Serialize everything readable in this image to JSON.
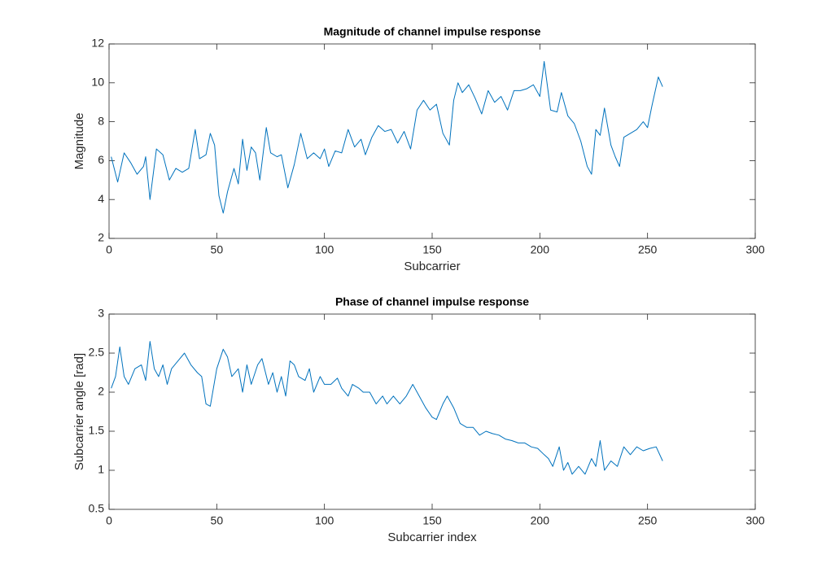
{
  "chart_data": [
    {
      "type": "line",
      "title": "Magnitude of channel impulse response",
      "xlabel": "Subcarrier",
      "ylabel": "Magnitude",
      "color": "#0072bd",
      "x": [
        1,
        4,
        7,
        10,
        13,
        16,
        17,
        19,
        22,
        25,
        28,
        31,
        34,
        37,
        40,
        42,
        45,
        47,
        49,
        51,
        53,
        55,
        58,
        60,
        62,
        64,
        66,
        68,
        70,
        73,
        75,
        78,
        80,
        83,
        86,
        89,
        92,
        95,
        98,
        100,
        102,
        105,
        108,
        111,
        114,
        117,
        119,
        122,
        125,
        128,
        131,
        134,
        137,
        140,
        143,
        146,
        149,
        152,
        155,
        158,
        160,
        162,
        164,
        167,
        170,
        173,
        176,
        179,
        182,
        185,
        188,
        191,
        194,
        197,
        200,
        202,
        205,
        208,
        210,
        213,
        216,
        219,
        222,
        224,
        226,
        228,
        230,
        233,
        235,
        237,
        239,
        242,
        245,
        248,
        250,
        252,
        255,
        257
      ],
      "values": [
        6.2,
        4.9,
        6.4,
        5.9,
        5.3,
        5.7,
        6.2,
        4.0,
        6.6,
        6.3,
        5.0,
        5.6,
        5.4,
        5.6,
        7.6,
        6.1,
        6.3,
        7.4,
        6.8,
        4.2,
        3.3,
        4.4,
        5.6,
        4.8,
        7.1,
        5.5,
        6.7,
        6.4,
        5.0,
        7.7,
        6.4,
        6.2,
        6.3,
        4.6,
        5.8,
        7.4,
        6.1,
        6.4,
        6.1,
        6.6,
        5.7,
        6.5,
        6.4,
        7.6,
        6.7,
        7.1,
        6.3,
        7.2,
        7.8,
        7.5,
        7.6,
        6.9,
        7.5,
        6.6,
        8.6,
        9.1,
        8.6,
        8.9,
        7.4,
        6.8,
        9.1,
        10.0,
        9.5,
        9.9,
        9.2,
        8.4,
        9.6,
        9.0,
        9.3,
        8.6,
        9.6,
        9.6,
        9.7,
        9.9,
        9.3,
        11.1,
        8.6,
        8.5,
        9.5,
        8.3,
        7.9,
        7.0,
        5.7,
        5.3,
        7.6,
        7.3,
        8.7,
        6.8,
        6.2,
        5.7,
        7.2,
        7.4,
        7.6,
        8.0,
        7.7,
        8.8,
        10.3,
        9.8
      ],
      "xlim": [
        0,
        300
      ],
      "xticks": [
        0,
        50,
        100,
        150,
        200,
        250,
        300
      ],
      "ylim": [
        2,
        12
      ],
      "yticks": [
        2,
        4,
        6,
        8,
        10,
        12
      ]
    },
    {
      "type": "line",
      "title": "Phase of channel impulse response",
      "xlabel": "Subcarrier index",
      "ylabel": "Subcarrier angle [rad]",
      "color": "#0072bd",
      "x": [
        1,
        3,
        5,
        7,
        9,
        12,
        15,
        17,
        19,
        21,
        23,
        25,
        27,
        29,
        32,
        35,
        38,
        41,
        43,
        45,
        47,
        50,
        53,
        55,
        57,
        60,
        62,
        64,
        66,
        69,
        71,
        74,
        76,
        78,
        80,
        82,
        84,
        86,
        88,
        91,
        93,
        95,
        98,
        100,
        103,
        106,
        108,
        111,
        113,
        116,
        118,
        121,
        124,
        127,
        129,
        132,
        135,
        138,
        141,
        144,
        147,
        150,
        152,
        155,
        157,
        160,
        163,
        166,
        169,
        172,
        175,
        178,
        181,
        184,
        187,
        190,
        193,
        196,
        199,
        202,
        204,
        206,
        209,
        211,
        213,
        215,
        218,
        221,
        224,
        226,
        228,
        230,
        233,
        236,
        239,
        242,
        245,
        248,
        251,
        254,
        257
      ],
      "values": [
        2.05,
        2.2,
        2.58,
        2.2,
        2.1,
        2.3,
        2.35,
        2.15,
        2.65,
        2.3,
        2.2,
        2.35,
        2.1,
        2.3,
        2.4,
        2.5,
        2.35,
        2.25,
        2.2,
        1.85,
        1.82,
        2.3,
        2.55,
        2.45,
        2.2,
        2.3,
        2.0,
        2.35,
        2.1,
        2.35,
        2.43,
        2.1,
        2.25,
        2.0,
        2.2,
        1.95,
        2.4,
        2.35,
        2.2,
        2.15,
        2.3,
        2.0,
        2.2,
        2.1,
        2.1,
        2.18,
        2.05,
        1.95,
        2.1,
        2.05,
        2.0,
        2.0,
        1.85,
        1.95,
        1.85,
        1.95,
        1.85,
        1.95,
        2.1,
        1.95,
        1.8,
        1.68,
        1.65,
        1.85,
        1.95,
        1.8,
        1.6,
        1.55,
        1.55,
        1.45,
        1.5,
        1.47,
        1.45,
        1.4,
        1.38,
        1.35,
        1.35,
        1.3,
        1.28,
        1.2,
        1.15,
        1.05,
        1.3,
        1.0,
        1.1,
        0.95,
        1.05,
        0.95,
        1.15,
        1.05,
        1.38,
        1.0,
        1.12,
        1.05,
        1.3,
        1.2,
        1.3,
        1.25,
        1.28,
        1.3,
        1.12
      ],
      "xlim": [
        0,
        300
      ],
      "xticks": [
        0,
        50,
        100,
        150,
        200,
        250,
        300
      ],
      "ylim": [
        0.5,
        3
      ],
      "yticks": [
        0.5,
        1,
        1.5,
        2,
        2.5,
        3
      ]
    }
  ]
}
